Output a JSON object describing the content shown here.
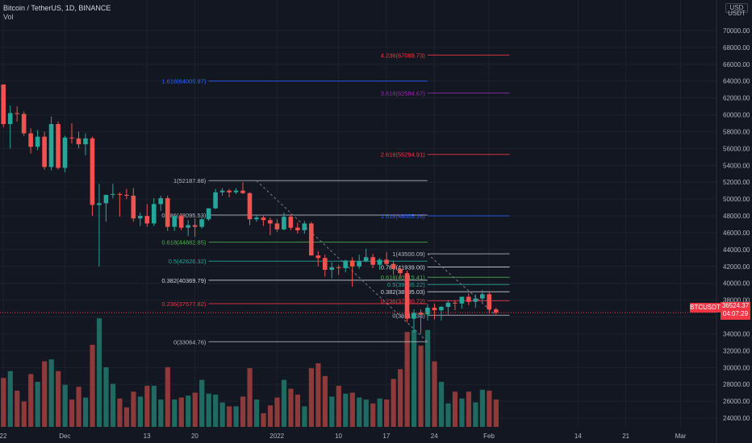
{
  "header": {
    "symbol_line": "Bitcoin / TetherUS, 1D, BINANCE",
    "vol_label": "Vol"
  },
  "currency": {
    "line1": "USD",
    "line2": "USDT"
  },
  "price_tag": {
    "symbol": "BTCUSDT",
    "price": "36524.37",
    "countdown": "04:07:29"
  },
  "chart_data": {
    "type": "candlestick",
    "y_ticks": [
      24000,
      26000,
      28000,
      30000,
      32000,
      34000,
      36000,
      38000,
      40000,
      42000,
      44000,
      46000,
      48000,
      50000,
      52000,
      54000,
      56000,
      58000,
      60000,
      62000,
      64000,
      66000,
      68000,
      70000
    ],
    "y_tick_labels": [
      "24000.00",
      "26000.00",
      "28000.00",
      "30000.00",
      "32000.00",
      "34000.00",
      "36000.00",
      "38000.00",
      "40000.00",
      "42000.00",
      "44000.00",
      "46000.00",
      "48000.00",
      "50000.00",
      "52000.00",
      "54000.00",
      "56000.00",
      "58000.00",
      "60000.00",
      "62000.00",
      "64000.00",
      "66000.00",
      "68000.00",
      "70000.00"
    ],
    "ylim": [
      22000,
      72000
    ],
    "x_labels": [
      {
        "label": "22",
        "day": 0
      },
      {
        "label": "Dec",
        "day": 9
      },
      {
        "label": "13",
        "day": 21
      },
      {
        "label": "20",
        "day": 28
      },
      {
        "label": "2022",
        "day": 40
      },
      {
        "label": "10",
        "day": 49
      },
      {
        "label": "17",
        "day": 56
      },
      {
        "label": "24",
        "day": 63
      },
      {
        "label": "Feb",
        "day": 71
      },
      {
        "label": "14",
        "day": 84
      },
      {
        "label": "21",
        "day": 91
      },
      {
        "label": "Mar",
        "day": 99
      }
    ],
    "candles": [
      [
        63600,
        63600,
        58500,
        58900
      ],
      [
        58900,
        61100,
        56000,
        60200
      ],
      [
        60200,
        61000,
        59200,
        60100
      ],
      [
        60100,
        60400,
        57500,
        57800
      ],
      [
        57800,
        58400,
        55400,
        56200
      ],
      [
        56200,
        58200,
        55800,
        57400
      ],
      [
        57400,
        58000,
        53500,
        53800
      ],
      [
        53800,
        59800,
        53400,
        58900
      ],
      [
        58900,
        59200,
        53500,
        53700
      ],
      [
        53700,
        57500,
        53200,
        57300
      ],
      [
        57300,
        59000,
        56600,
        57200
      ],
      [
        57200,
        58000,
        56000,
        56500
      ],
      [
        56500,
        57800,
        55200,
        57200
      ],
      [
        57200,
        57400,
        48000,
        49300
      ],
      [
        49300,
        51800,
        42000,
        49500
      ],
      [
        49500,
        50400,
        47300,
        50500
      ],
      [
        50500,
        51800,
        50100,
        50600
      ],
      [
        50600,
        50800,
        47900,
        50500
      ],
      [
        50500,
        51200,
        50000,
        50400
      ],
      [
        50400,
        51300,
        47300,
        47700
      ],
      [
        47700,
        48400,
        46800,
        48000
      ],
      [
        48000,
        49400,
        46700,
        47100
      ],
      [
        47100,
        50100,
        46800,
        49400
      ],
      [
        49400,
        50400,
        48600,
        50100
      ],
      [
        50100,
        50400,
        46200,
        46700
      ],
      [
        46700,
        48000,
        46200,
        48000
      ],
      [
        48000,
        48200,
        46300,
        46600
      ],
      [
        46600,
        47500,
        45600,
        46900
      ],
      [
        46900,
        47700,
        45500,
        46700
      ],
      [
        46700,
        47800,
        46500,
        47600
      ],
      [
        47600,
        48900,
        47400,
        48900
      ],
      [
        48900,
        51200,
        48800,
        50800
      ],
      [
        50800,
        51300,
        50400,
        51000
      ],
      [
        51000,
        51200,
        50200,
        50800
      ],
      [
        50800,
        51300,
        50600,
        51000
      ],
      [
        51000,
        52000,
        50600,
        50700
      ],
      [
        50700,
        50800,
        46900,
        47600
      ],
      [
        47600,
        48100,
        47300,
        47800
      ],
      [
        47800,
        48000,
        46800,
        47500
      ],
      [
        47500,
        47800,
        45700,
        47100
      ],
      [
        47100,
        47600,
        46100,
        46400
      ],
      [
        46400,
        48400,
        46300,
        47900
      ],
      [
        47900,
        48200,
        46300,
        46600
      ],
      [
        46600,
        47200,
        45900,
        46300
      ],
      [
        46300,
        47400,
        45900,
        47100
      ],
      [
        47100,
        47300,
        43600,
        43300
      ],
      [
        43300,
        43800,
        42000,
        43000
      ],
      [
        43000,
        43400,
        40800,
        41600
      ],
      [
        41600,
        42500,
        40600,
        41900
      ],
      [
        41900,
        42200,
        41000,
        41800
      ],
      [
        41800,
        42800,
        41300,
        42700
      ],
      [
        42700,
        43100,
        39600,
        42000
      ],
      [
        42000,
        43400,
        41700,
        42600
      ],
      [
        42600,
        44100,
        42500,
        43100
      ],
      [
        43100,
        43500,
        41800,
        42200
      ],
      [
        42200,
        43000,
        41600,
        42800
      ],
      [
        42800,
        43700,
        42100,
        42300
      ],
      [
        42300,
        42700,
        41000,
        41700
      ],
      [
        41700,
        41900,
        40700,
        41200
      ],
      [
        41200,
        41500,
        35400,
        35800
      ],
      [
        35800,
        36900,
        34100,
        36500
      ],
      [
        36500,
        36900,
        34000,
        36300
      ],
      [
        36300,
        37500,
        35600,
        37100
      ],
      [
        37100,
        37600,
        35700,
        36800
      ],
      [
        36800,
        37300,
        35600,
        37200
      ],
      [
        37200,
        38000,
        36300,
        37700
      ],
      [
        37700,
        38000,
        36800,
        37600
      ],
      [
        37600,
        38400,
        37000,
        38400
      ],
      [
        38400,
        38800,
        37400,
        37800
      ],
      [
        37800,
        38700,
        37100,
        38200
      ],
      [
        38200,
        39200,
        37800,
        38700
      ],
      [
        38700,
        38900,
        36400,
        36900
      ],
      [
        36900,
        37100,
        36300,
        36524
      ]
    ],
    "volume": [
      27500,
      28200,
      26200,
      25100,
      27900,
      27100,
      29200,
      29400,
      28200,
      26800,
      25300,
      26600,
      25500,
      30900,
      33600,
      28600,
      26900,
      25400,
      24500,
      26100,
      25600,
      26700,
      26700,
      25300,
      28600,
      25300,
      25500,
      25700,
      26000,
      27300,
      25900,
      25800,
      25000,
      24600,
      24600,
      25600,
      28500,
      25300,
      23900,
      24700,
      25500,
      27300,
      26400,
      25800,
      24600,
      28500,
      29000,
      27700,
      25600,
      26700,
      25900,
      26000,
      25500,
      25300,
      24900,
      25400,
      25300,
      27400,
      28400,
      32200,
      32400,
      30800,
      32400,
      29200,
      27100,
      24900,
      26100,
      25400,
      26100,
      25000,
      26300,
      26200,
      25300
    ],
    "vol_scale": [
      22500,
      33200
    ],
    "fib_sets": [
      {
        "color_line": "#b2b5be",
        "levels": [
          {
            "label": "1(52187.88)",
            "value": 52187.88,
            "color": "#b2b5be"
          },
          {
            "label": "0.786(48095.53)",
            "value": 48095.53,
            "color": "#b2b5be"
          },
          {
            "label": "0.618(44882.85)",
            "value": 44882.85,
            "color": "#4caf50"
          },
          {
            "label": "0.5(42626.32)",
            "value": 42626.32,
            "color": "#26a69a"
          },
          {
            "label": "0.382(40369.79)",
            "value": 40369.79,
            "color": "#d1d4dc"
          },
          {
            "label": "0.236(37577.82)",
            "value": 37577.82,
            "color": "#f23645"
          },
          {
            "label": "0(33064.76)",
            "value": 33064.76,
            "color": "#b2b5be"
          }
        ],
        "x_start_day": 30,
        "x_end_day": 62
      },
      {
        "levels": [
          {
            "label": "4.236(67089.73)",
            "value": 67089.73,
            "color": "#f23645"
          },
          {
            "label": "3.618(62584.67)",
            "value": 62584.67,
            "color": "#9c27b0"
          },
          {
            "label": "2.618(55294.91)",
            "value": 55294.91,
            "color": "#f23645"
          },
          {
            "label": "1.618(48005.16)",
            "value": 48005.16,
            "color": "#2962ff"
          },
          {
            "label": "1(43500.09)",
            "value": 43500.09,
            "color": "#b2b5be"
          },
          {
            "label": "0.786(41939.00)",
            "value": 41939.0,
            "color": "#d1d4dc"
          },
          {
            "label": "0.618(40715.41)",
            "value": 40715.41,
            "color": "#4caf50"
          },
          {
            "label": "0.5(39855.22)",
            "value": 39855.22,
            "color": "#26a69a"
          },
          {
            "label": "0.382(38995.03)",
            "value": 38995.03,
            "color": "#d1d4dc"
          },
          {
            "label": "0.236(37930.72)",
            "value": 37930.72,
            "color": "#f23645"
          },
          {
            "label": "0(36210.34)",
            "value": 36210.34,
            "color": "#b2b5be"
          }
        ],
        "x_start_day": 62,
        "x_end_day": 74
      },
      {
        "levels": [
          {
            "label": "1.618(64005.97)",
            "value": 64005.97,
            "color": "#2962ff"
          }
        ],
        "x_start_day": 30,
        "x_end_day": 62
      }
    ],
    "current_price": 36524.37
  },
  "colors": {
    "up": "#26a69a",
    "down": "#ef5350",
    "bg": "#131722",
    "grid": "#1e222d",
    "text": "#b2b5be",
    "vol_up": "#1f6b62",
    "vol_down": "#8e3a3a"
  }
}
